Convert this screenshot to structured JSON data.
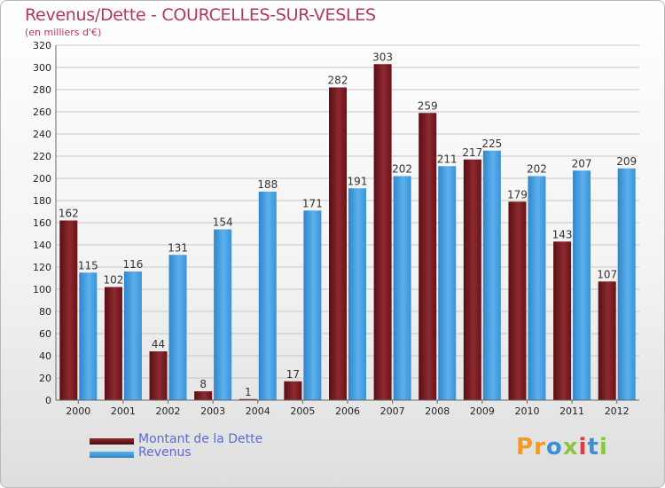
{
  "header": {
    "title": "Revenus/Dette - COURCELLES-SUR-VESLES",
    "subtitle": "(en milliers d'€)"
  },
  "legend": {
    "debt_label": "Montant de la Dette",
    "revenue_label": "Revenus"
  },
  "logo": {
    "text": "Proxiti",
    "letter_colors": [
      "#f09a2a",
      "#f09a2a",
      "#3b8fd6",
      "#8cc63f",
      "#e23b3b",
      "#3b8fd6",
      "#8cc63f"
    ]
  },
  "colors": {
    "debt": "#7a1a1f",
    "revenue": "#4aa0e0",
    "title": "#b23a55"
  },
  "chart_data": {
    "type": "bar",
    "categories": [
      "2000",
      "2001",
      "2002",
      "2003",
      "2004",
      "2005",
      "2006",
      "2007",
      "2008",
      "2009",
      "2010",
      "2011",
      "2012"
    ],
    "series": [
      {
        "name": "Montant de la Dette",
        "values": [
          162,
          102,
          44,
          8,
          1,
          17,
          282,
          303,
          259,
          217,
          179,
          143,
          107
        ]
      },
      {
        "name": "Revenus",
        "values": [
          115,
          116,
          131,
          154,
          188,
          171,
          191,
          202,
          211,
          225,
          202,
          207,
          209
        ]
      }
    ],
    "yticks": [
      0,
      20,
      40,
      60,
      80,
      100,
      120,
      140,
      160,
      180,
      200,
      220,
      240,
      260,
      280,
      300,
      320
    ],
    "ylim": [
      0,
      320
    ],
    "grid": true
  }
}
